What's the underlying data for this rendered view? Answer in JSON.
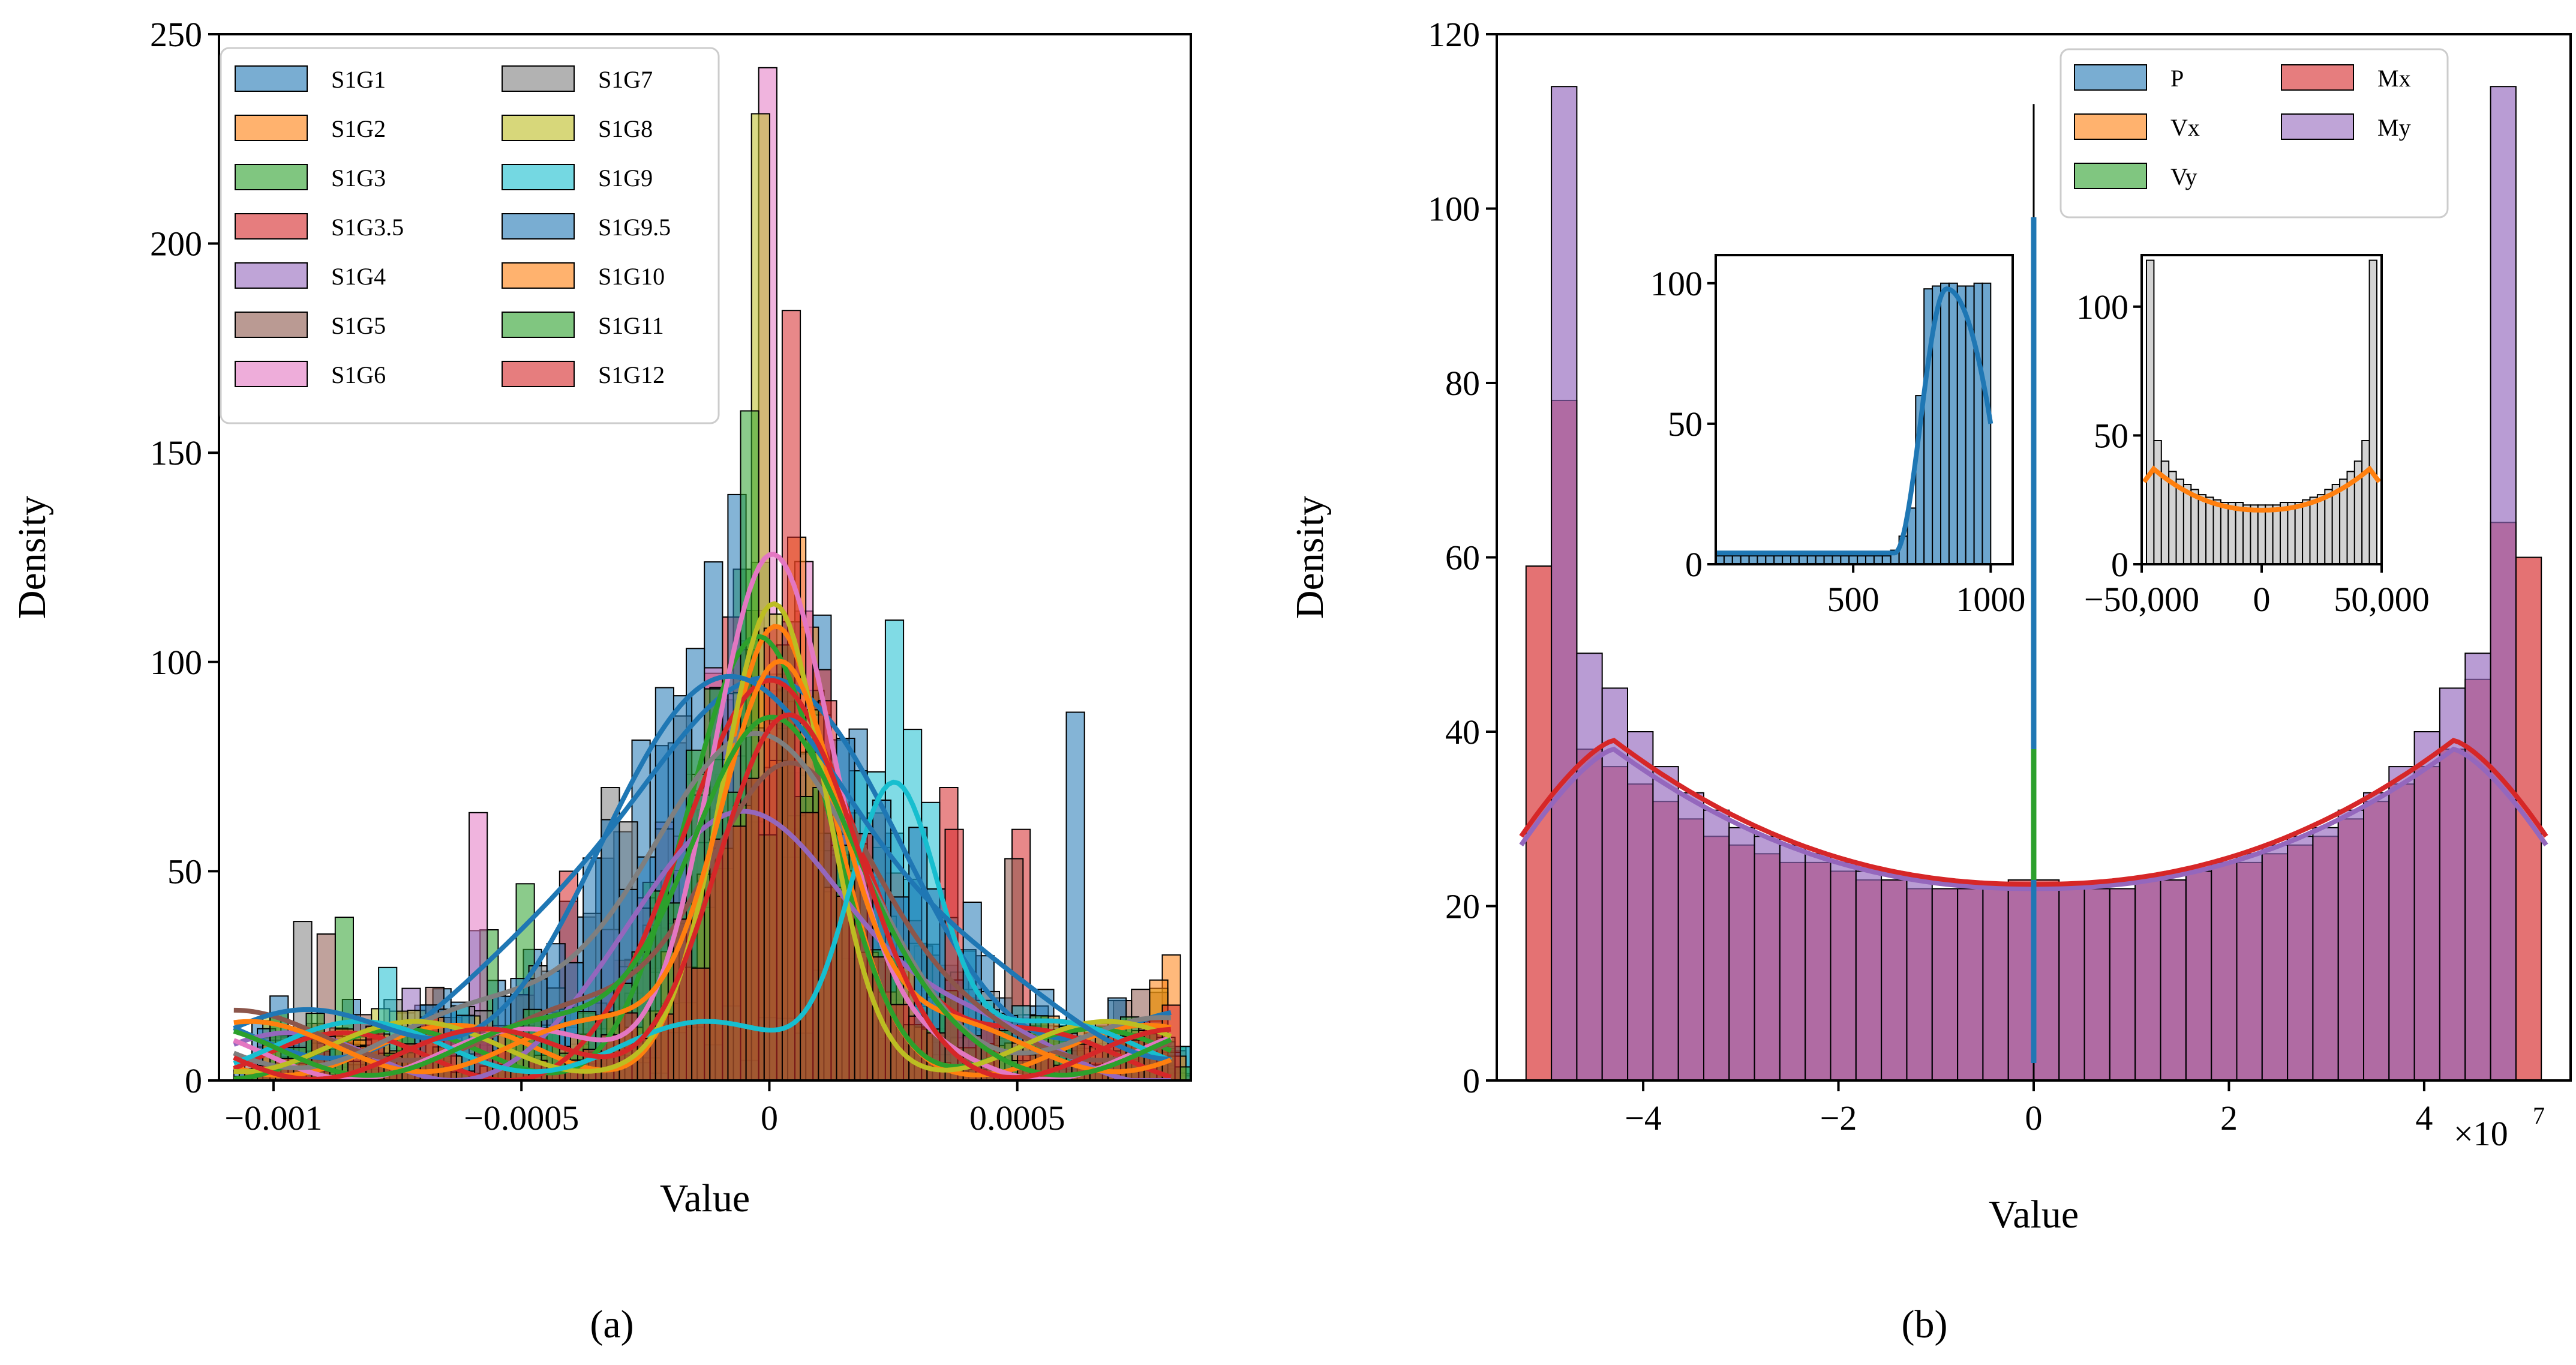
{
  "figure": {
    "panel_labels": [
      "(a)",
      "(b)"
    ]
  },
  "chart_data": [
    {
      "type": "histogram",
      "panel": "(a)",
      "xlabel": "Value",
      "ylabel": "Density",
      "xlim": [
        -0.00111,
        0.00085
      ],
      "ylim": [
        0,
        250
      ],
      "x_ticks": [
        {
          "v": -0.001,
          "label": "−0.001"
        },
        {
          "v": -0.0005,
          "label": "−0.0005"
        },
        {
          "v": 0,
          "label": "0"
        },
        {
          "v": 0.0005,
          "label": "0.0005"
        }
      ],
      "y_ticks": [
        0,
        50,
        100,
        150,
        200,
        250
      ],
      "legend": {
        "placement": "upper-left",
        "columns": 2
      },
      "series": [
        {
          "name": "S1G1",
          "color": "#1f77b4",
          "peak_x": -5e-05,
          "peak_y": 87,
          "spread": 0.00026,
          "floor": 12,
          "tall_bins": [
            [
              -0.00108,
              36
            ],
            [
              0.0006,
              88
            ],
            [
              -0.00024,
              80
            ]
          ]
        },
        {
          "name": "S1G2",
          "color": "#ff7f0e",
          "peak_x": 1e-05,
          "peak_y": 96,
          "spread": 0.00011,
          "floor": 8,
          "tall_bins": [
            [
              0.00081,
              30
            ],
            [
              0.00012,
              70
            ]
          ]
        },
        {
          "name": "S1G3",
          "color": "#2ca02c",
          "peak_x": -2e-05,
          "peak_y": 94,
          "spread": 0.00014,
          "floor": 7,
          "tall_bins": [
            [
              -0.00084,
              39
            ],
            [
              -0.00058,
              36
            ],
            [
              -0.0005,
              47
            ]
          ]
        },
        {
          "name": "S1G3.5",
          "color": "#d62728",
          "peak_x": 2e-05,
          "peak_y": 90,
          "spread": 0.00017,
          "floor": 6,
          "tall_bins": [
            [
              -0.0004,
              50
            ],
            [
              0.00037,
              70
            ],
            [
              0.0005,
              60
            ]
          ]
        },
        {
          "name": "S1G4",
          "color": "#9467bd",
          "peak_x": -2e-05,
          "peak_y": 62,
          "spread": 0.0002,
          "floor": 6,
          "tall_bins": [
            [
              -0.00073,
              22
            ]
          ]
        },
        {
          "name": "S1G5",
          "color": "#8c564b",
          "peak_x": 3e-05,
          "peak_y": 70,
          "spread": 0.00016,
          "floor": 12,
          "tall_bins": [
            [
              -0.00089,
              35
            ],
            [
              0.0005,
              53
            ]
          ]
        },
        {
          "name": "S1G6",
          "color": "#e377c2",
          "peak_x": 0.0,
          "peak_y": 121,
          "spread": 0.00012,
          "floor": 7,
          "tall_bins": [
            [
              -0.0006,
              64
            ],
            [
              -2e-05,
              242
            ]
          ]
        },
        {
          "name": "S1G7",
          "color": "#7f7f7f",
          "peak_x": -6e-05,
          "peak_y": 72,
          "spread": 0.00022,
          "floor": 10,
          "tall_bins": [
            [
              -0.00093,
              38
            ],
            [
              -0.00032,
              70
            ]
          ]
        },
        {
          "name": "S1G8",
          "color": "#bcbd22",
          "peak_x": 1e-05,
          "peak_y": 100,
          "spread": 0.0001,
          "floor": 9,
          "tall_bins": [
            [
              -1e-05,
              231
            ],
            [
              0.00078,
              22
            ]
          ]
        },
        {
          "name": "S1G9",
          "color": "#17becf",
          "peak_x": 0.00025,
          "peak_y": 69,
          "spread": 9e-05,
          "floor": 9,
          "tall_bins": [
            [
              0.00026,
              110
            ],
            [
              -0.00078,
              27
            ],
            [
              0.00019,
              74
            ]
          ]
        },
        {
          "name": "S1G9.5",
          "color": "#1f77b4",
          "peak_x": -4e-05,
          "peak_y": 86,
          "spread": 0.00025,
          "floor": 12,
          "tall_bins": [
            [
              -7e-05,
              140
            ]
          ]
        },
        {
          "name": "S1G10",
          "color": "#ff7f0e",
          "peak_x": 2e-05,
          "peak_y": 98,
          "spread": 0.00012,
          "floor": 9,
          "tall_bins": [
            [
              0.0008,
              24
            ]
          ]
        },
        {
          "name": "S1G11",
          "color": "#2ca02c",
          "peak_x": -1e-05,
          "peak_y": 83,
          "spread": 0.00016,
          "floor": 8,
          "tall_bins": [
            [
              -3e-05,
              160
            ],
            [
              0.00011,
              70
            ]
          ]
        },
        {
          "name": "S1G12",
          "color": "#d62728",
          "peak_x": 3e-05,
          "peak_y": 77,
          "spread": 0.00014,
          "floor": 7,
          "tall_bins": [
            [
              3e-05,
              184
            ],
            [
              0.00082,
              18
            ],
            [
              0.00036,
              60
            ]
          ]
        }
      ]
    },
    {
      "type": "histogram",
      "panel": "(b)",
      "xlabel": "Value",
      "ylabel": "Density",
      "x_scale_label": "×10",
      "x_scale_exponent": "7",
      "xlim": [
        -5.5,
        5.5
      ],
      "ylim": [
        0,
        120
      ],
      "x_ticks": [
        {
          "v": -4,
          "label": "−4"
        },
        {
          "v": -2,
          "label": "−2"
        },
        {
          "v": 0,
          "label": "0"
        },
        {
          "v": 2,
          "label": "2"
        },
        {
          "v": 4,
          "label": "4"
        }
      ],
      "y_ticks": [
        0,
        20,
        40,
        60,
        80,
        100,
        120
      ],
      "legend": {
        "placement": "upper-right",
        "columns": 2
      },
      "series": [
        {
          "name": "P",
          "color": "#1f77b4"
        },
        {
          "name": "Vx",
          "color": "#ff7f0e"
        },
        {
          "name": "Vy",
          "color": "#2ca02c"
        },
        {
          "name": "Mx",
          "color": "#d62728"
        },
        {
          "name": "My",
          "color": "#9467bd"
        }
      ],
      "histogram_range": [
        -5.2,
        5.2
      ],
      "bins": 40,
      "My_heights": [
        0,
        114,
        49,
        45,
        40,
        36,
        33,
        31,
        29,
        28,
        27,
        26,
        25,
        24,
        23,
        23,
        22,
        22,
        22,
        22,
        22,
        22,
        22,
        22,
        23,
        23,
        24,
        25,
        26,
        27,
        28,
        29,
        31,
        33,
        36,
        40,
        45,
        49,
        114,
        0
      ],
      "Mx_heights": [
        59,
        78,
        38,
        36,
        34,
        32,
        30,
        28,
        27,
        26,
        25,
        25,
        24,
        23,
        23,
        22,
        22,
        22,
        22,
        23,
        23,
        22,
        22,
        22,
        23,
        23,
        24,
        25,
        25,
        26,
        27,
        28,
        30,
        32,
        34,
        36,
        38,
        46,
        64,
        60
      ],
      "My_kde": {
        "center": 22,
        "peak": 38,
        "peak_at": 4.3,
        "ends": 27
      },
      "Mx_kde": {
        "center": 22.5,
        "peak": 39,
        "peak_at": 4.3,
        "ends": 28
      },
      "P_spike": {
        "x": 0,
        "y_range": [
          2,
          99
        ]
      },
      "Vy_spike": {
        "x": 0,
        "y_range": [
          23,
          38
        ]
      },
      "Vx_spike_top": 38,
      "insets": [
        {
          "name": "P",
          "color": "#1f77b4",
          "xlim": [
            0,
            1080
          ],
          "ylim": [
            0,
            110
          ],
          "x_ticks": [
            500,
            1000
          ],
          "y_ticks": [
            0,
            50,
            100
          ],
          "bin_range": [
            0,
            1000
          ],
          "heights": [
            3,
            3,
            3,
            3,
            3,
            3,
            3,
            3,
            3,
            3,
            3,
            3,
            3,
            3,
            3,
            3,
            3,
            3,
            3,
            3,
            3,
            5,
            10,
            20,
            60,
            98,
            99,
            100,
            100,
            99,
            99,
            100,
            100
          ],
          "kde": {
            "low": 4,
            "rise_at": 650,
            "peak": 98,
            "peak_at": 840,
            "end_val": 50
          }
        },
        {
          "name": "Vx",
          "color": "#ff7f0e",
          "xlim": [
            -50000,
            50000
          ],
          "ylim": [
            0,
            120
          ],
          "x_ticks": [
            {
              "v": -50000,
              "label": "−50,000"
            },
            {
              "v": 0,
              "label": "0"
            },
            {
              "v": 50000,
              "label": "50,000"
            }
          ],
          "y_ticks": [
            0,
            50,
            100
          ],
          "bin_range": [
            -48000,
            48000
          ],
          "heights": [
            118,
            48,
            40,
            36,
            33,
            31,
            29,
            27,
            26,
            25,
            24,
            24,
            24,
            23,
            23,
            23,
            23,
            23,
            24,
            24,
            24,
            25,
            26,
            27,
            29,
            31,
            33,
            36,
            40,
            48,
            118
          ],
          "kde": {
            "center": 21,
            "peak": 37,
            "peak_at": 45000,
            "ends": 32
          }
        }
      ]
    }
  ]
}
